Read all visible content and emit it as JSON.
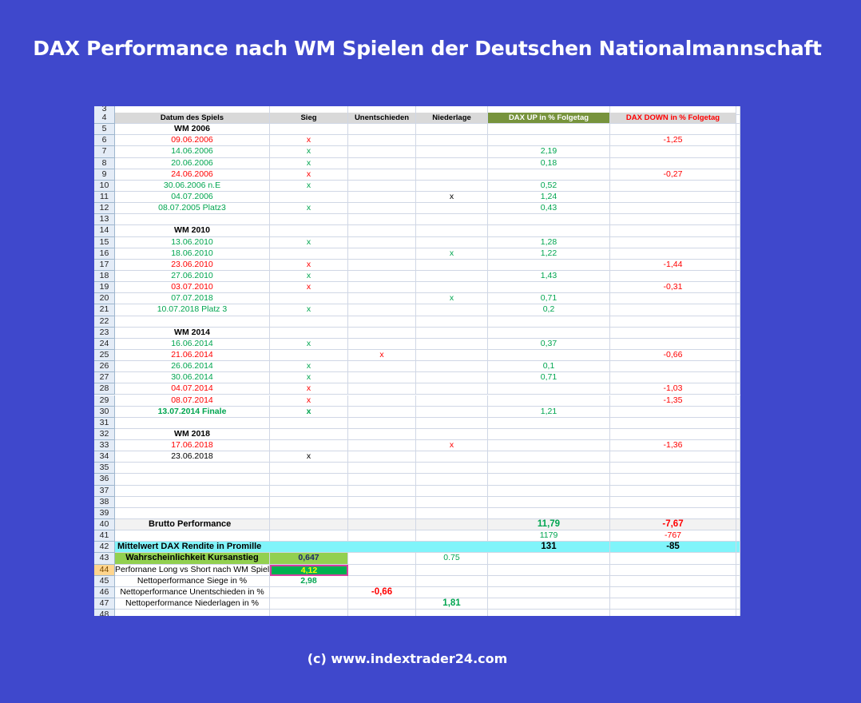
{
  "title": "DAX Performance nach WM Spielen der Deutschen Nationalmannschaft",
  "footer": "(c) www.indextrader24.com",
  "colors": {
    "green": "#00a550",
    "red": "#ff0000",
    "header_up_bg": "#77933c",
    "cyan_bg": "#80f4fa",
    "lightgreen_bg": "#92d050",
    "cell_green": "#00b050",
    "selected_value": "#ffff00"
  },
  "headers": {
    "a": "Datum des Spiels",
    "b": "Sieg",
    "c": "Unentschieden",
    "d": "Niederlage",
    "e": "DAX  UP in % Folgetag",
    "f": "DAX DOWN  in % Folgetag"
  },
  "rows": [
    {
      "n": "3"
    },
    {
      "n": "4",
      "header": true
    },
    {
      "n": "5",
      "a": "WM 2006",
      "ac": "k b"
    },
    {
      "n": "6",
      "a": "09.06.2006",
      "ac": "r",
      "b": "x",
      "bc": "r",
      "f": "-1,25"
    },
    {
      "n": "7",
      "a": "14.06.2006",
      "ac": "g",
      "b": "x",
      "bc": "g",
      "e": "2,19"
    },
    {
      "n": "8",
      "a": "20.06.2006",
      "ac": "g",
      "b": "x",
      "bc": "g",
      "e": "0,18"
    },
    {
      "n": "9",
      "a": "24.06.2006",
      "ac": "r",
      "b": "x",
      "bc": "r",
      "f": "-0,27"
    },
    {
      "n": "10",
      "a": "30.06.2006 n.E",
      "ac": "g",
      "b": "x",
      "bc": "g",
      "e": "0,52"
    },
    {
      "n": "11",
      "a": "04.07.2006",
      "ac": "g",
      "d": "x",
      "dc": "k",
      "e": "1,24"
    },
    {
      "n": "12",
      "a": "08.07.2005 Platz3",
      "ac": "g",
      "b": "x",
      "bc": "g",
      "e": "0,43"
    },
    {
      "n": "13"
    },
    {
      "n": "14",
      "a": "WM 2010",
      "ac": "k b"
    },
    {
      "n": "15",
      "a": "13.06.2010",
      "ac": "g",
      "b": "x",
      "bc": "g",
      "e": "1,28"
    },
    {
      "n": "16",
      "a": "18.06.2010",
      "ac": "g",
      "d": "x",
      "dc": "g",
      "e": "1,22"
    },
    {
      "n": "17",
      "a": "23.06.2010",
      "ac": "r",
      "b": "x",
      "bc": "r",
      "f": "-1,44"
    },
    {
      "n": "18",
      "a": "27.06.2010",
      "ac": "g",
      "b": "x",
      "bc": "g",
      "e": "1,43"
    },
    {
      "n": "19",
      "a": "03.07.2010",
      "ac": "r",
      "b": "x",
      "bc": "r",
      "f": "-0,31"
    },
    {
      "n": "20",
      "a": "07.07.2018",
      "ac": "g",
      "d": "x",
      "dc": "g",
      "e": "0,71"
    },
    {
      "n": "21",
      "a": "10.07.2018 Platz 3",
      "ac": "g",
      "b": "x",
      "bc": "g",
      "e": "0,2"
    },
    {
      "n": "22"
    },
    {
      "n": "23",
      "a": "WM 2014",
      "ac": "k b"
    },
    {
      "n": "24",
      "a": "16.06.2014",
      "ac": "g",
      "b": "x",
      "bc": "g",
      "e": "0,37"
    },
    {
      "n": "25",
      "a": "21.06.2014",
      "ac": "r",
      "c": "x",
      "cc": "r",
      "f": "-0,66"
    },
    {
      "n": "26",
      "a": "26.06.2014",
      "ac": "g",
      "b": "x",
      "bc": "g",
      "e": "0,1"
    },
    {
      "n": "27",
      "a": "30.06.2014",
      "ac": "g",
      "b": "x",
      "bc": "g",
      "e": "0,71"
    },
    {
      "n": "28",
      "a": "04.07.2014",
      "ac": "r",
      "b": "x",
      "bc": "r",
      "f": "-1,03"
    },
    {
      "n": "29",
      "a": "08.07.2014",
      "ac": "r",
      "b": "x",
      "bc": "r",
      "f": "-1,35"
    },
    {
      "n": "30",
      "a": "13.07.2014 Finale",
      "ac": "g b",
      "b": "x",
      "bc": "g b",
      "e": "1,21"
    },
    {
      "n": "31"
    },
    {
      "n": "32",
      "a": "WM 2018",
      "ac": "k b"
    },
    {
      "n": "33",
      "a": "17.06.2018",
      "ac": "r",
      "d": "x",
      "dc": "r",
      "f": "-1,36"
    },
    {
      "n": "34",
      "a": "23.06.2018",
      "ac": "k",
      "b": "x",
      "bc": "k"
    },
    {
      "n": "35"
    },
    {
      "n": "36"
    },
    {
      "n": "37"
    },
    {
      "n": "38"
    },
    {
      "n": "39"
    },
    {
      "n": "40",
      "a": "Brutto Performance",
      "ac": "k b",
      "bg": "#f2f2f2",
      "e": "11,79",
      "ec": "g b",
      "f": "-7,67",
      "fc": "r b"
    },
    {
      "n": "41",
      "e": "1179",
      "ec": "g",
      "f": "-767",
      "fc": "r"
    },
    {
      "n": "42",
      "a": "Mittelwert DAX Rendite in Promille",
      "ac": "k b",
      "bg": "#80f4fa",
      "e": "131",
      "ec": "k b",
      "f": "-85",
      "fc": "k b"
    },
    {
      "n": "43",
      "a": "Wahrscheinlichkeit Kursanstieg",
      "ac": "k b",
      "abg": "#92d050",
      "b": "0,647",
      "bc": "b",
      "bbg": "#92d050",
      "d": "0.75",
      "dc": "g"
    },
    {
      "n": "44",
      "a": "Perfornane Long vs Short nach WM Spiel",
      "ac": "k",
      "b": "4,12",
      "bc": "b",
      "sel": true
    },
    {
      "n": "45",
      "a": "Nettoperformance Siege in %",
      "ac": "k",
      "b": "2,98",
      "bc": "g b"
    },
    {
      "n": "46",
      "a": "Nettoperformance Unentschieden in %",
      "ac": "k",
      "c": "-0,66",
      "cc": "r b"
    },
    {
      "n": "47",
      "a": "Nettoperformance Niederlagen in %",
      "ac": "k",
      "d": "1,81",
      "dc": "g b"
    },
    {
      "n": "48"
    }
  ]
}
